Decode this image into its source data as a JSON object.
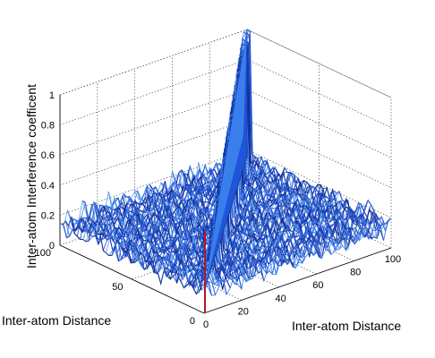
{
  "chart_data": {
    "type": "surface",
    "title": "",
    "xlabel": "Inter-atom Distance",
    "ylabel": "Inter-atom Distance",
    "zlabel": "Inter-atom Interference coefficent",
    "xlim": [
      0,
      100
    ],
    "ylim": [
      0,
      100
    ],
    "zlim": [
      0,
      1
    ],
    "x_ticks": [
      "0",
      "20",
      "40",
      "60",
      "80",
      "100"
    ],
    "y_ticks": [
      "0",
      "50",
      "100"
    ],
    "z_ticks": [
      "0",
      "0.2",
      "0.4",
      "0.6",
      "0.8",
      "1"
    ],
    "grid": true,
    "colormap": "blue shades",
    "surface": {
      "description_values": "peak z=1 along diagonal x=y; off-diagonal noisy fluctuation",
      "diagonal_peak": 1.0,
      "background_mean": 0.15,
      "background_amplitude": 0.1
    }
  }
}
